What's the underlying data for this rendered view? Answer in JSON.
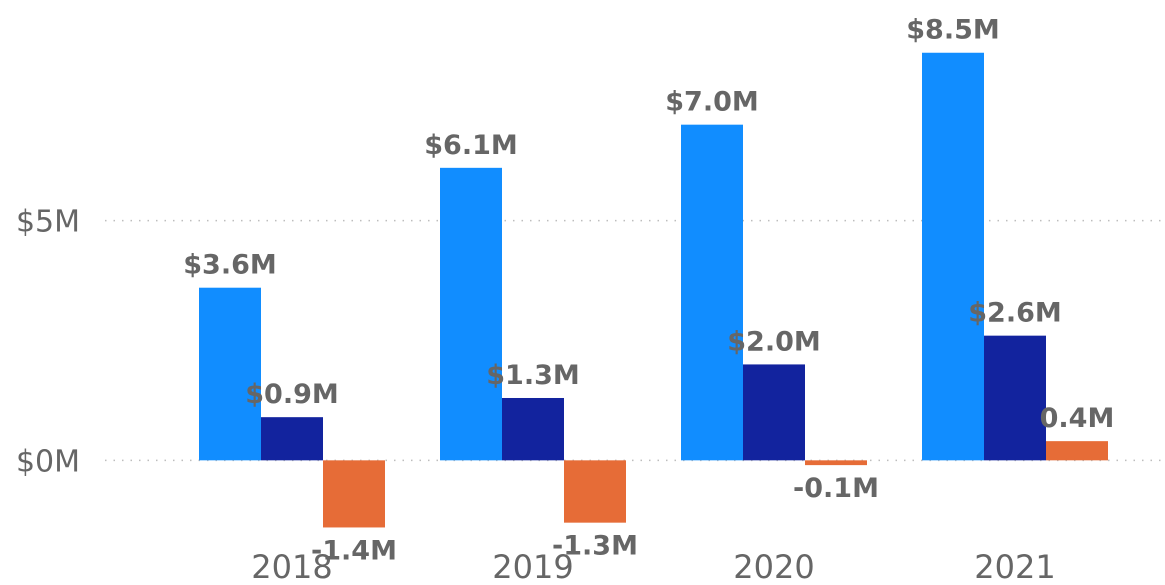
{
  "chart_data": {
    "type": "bar",
    "categories": [
      "2018",
      "2019",
      "2020",
      "2021"
    ],
    "series": [
      {
        "values": [
          3.6,
          6.1,
          7.0,
          8.5
        ],
        "labels": [
          "$3.6M",
          "$6.1M",
          "$7.0M",
          "$8.5M"
        ],
        "color": "#118DFF"
      },
      {
        "values": [
          0.9,
          1.3,
          2.0,
          2.6
        ],
        "labels": [
          "$0.9M",
          "$1.3M",
          "$2.0M",
          "$2.6M"
        ],
        "color": "#12239E"
      },
      {
        "values": [
          -1.4,
          -1.3,
          -0.1,
          0.4
        ],
        "labels": [
          "-1.4M",
          "-1.3M",
          "-0.1M",
          "0.4M"
        ],
        "color": "#E66C37"
      }
    ],
    "yticks": [
      {
        "value": 0,
        "label": "$0M"
      },
      {
        "value": 5,
        "label": "$5M"
      }
    ],
    "ylim": [
      -2.6,
      9.6
    ],
    "grid": true,
    "title": "",
    "xlabel": "",
    "ylabel": ""
  }
}
